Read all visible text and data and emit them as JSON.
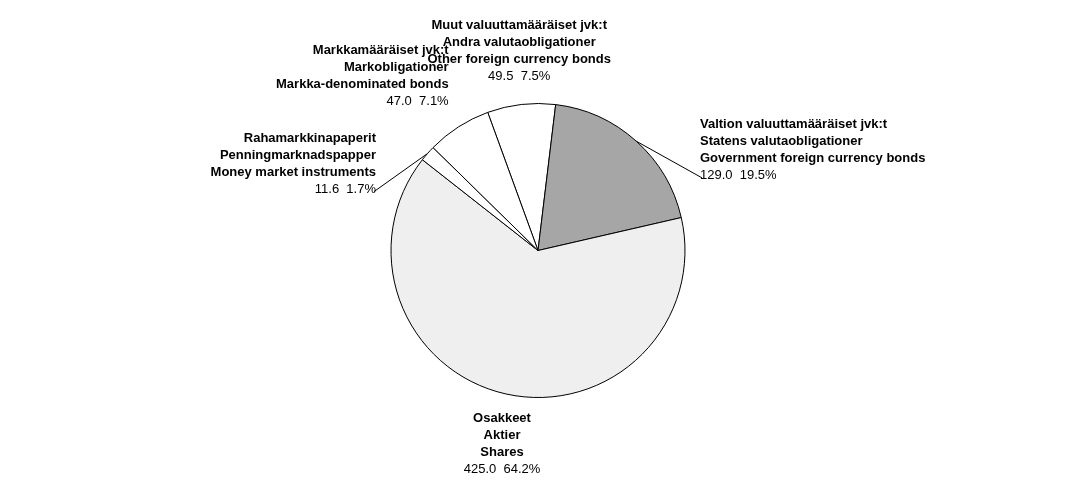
{
  "chart_data": {
    "type": "pie",
    "categories": [
      "Muut valuuttamääräiset jvk:t\nAndra valutaobligationer\nOther foreign currency bonds",
      "Valtion valuuttamääräiset jvk:t\nStatens valutaobligationer\nGovernment foreign currency bonds",
      "Osakkeet\nAktier\nShares",
      "Rahamarkkinapaperit\nPenningmarknadspapper\nMoney market instruments",
      "Markkamääräiset jvk:t\nMarkobligationer\nMarkka-denominated bonds"
    ],
    "values": [
      49.5,
      129.0,
      425.0,
      11.6,
      47.0
    ],
    "colors": [
      "#ffffff",
      "#a6a6a6",
      "#efefef",
      "#ffffff",
      "#ffffff"
    ],
    "value_labels": [
      "49.5  7.5%",
      "129.0  19.5%",
      "425.0  64.2%",
      "11.6  1.7%",
      "47.0  7.1%"
    ],
    "legend": false
  }
}
